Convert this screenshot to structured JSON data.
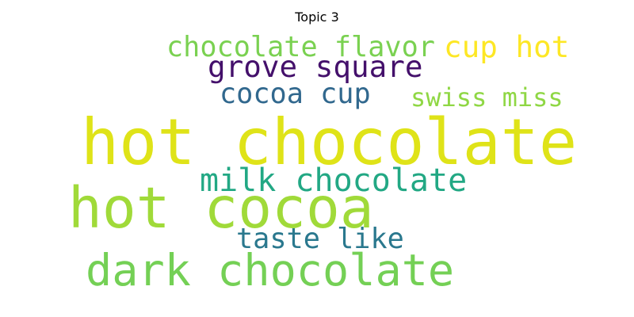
{
  "chart_data": {
    "type": "wordcloud",
    "title": "Topic 3",
    "words": [
      {
        "text": "hot chocolate",
        "weight": 1.0,
        "color": "#dfe318"
      },
      {
        "text": "hot cocoa",
        "weight": 0.89,
        "color": "#a0da39"
      },
      {
        "text": "dark chocolate",
        "weight": 0.69,
        "color": "#74d055"
      },
      {
        "text": "milk chocolate",
        "weight": 0.5,
        "color": "#22a884"
      },
      {
        "text": "grove square",
        "weight": 0.47,
        "color": "#44106b"
      },
      {
        "text": "cup hot",
        "weight": 0.47,
        "color": "#fde725"
      },
      {
        "text": "chocolate flavor",
        "weight": 0.44,
        "color": "#7ad151"
      },
      {
        "text": "cocoa cup",
        "weight": 0.44,
        "color": "#31688e"
      },
      {
        "text": "taste like",
        "weight": 0.44,
        "color": "#2a788e"
      },
      {
        "text": "swiss miss",
        "weight": 0.4,
        "color": "#8fd744"
      }
    ]
  }
}
